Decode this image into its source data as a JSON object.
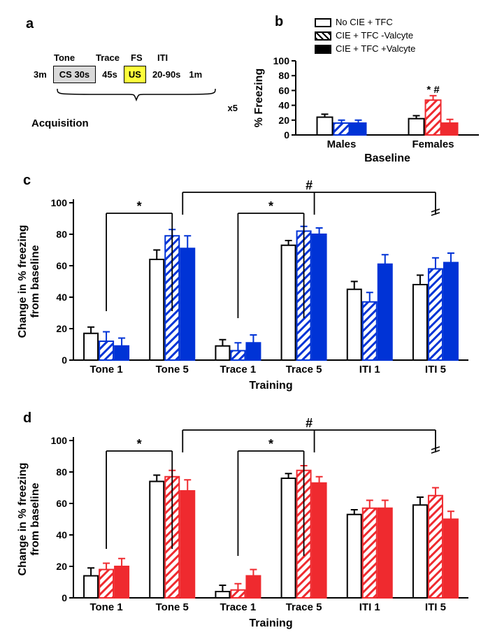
{
  "panel_a": {
    "label": "a",
    "top_labels": [
      "Tone",
      "Trace",
      "FS",
      "ITI"
    ],
    "row": [
      "3m",
      "CS 30s",
      "45s",
      "US",
      "20-90s",
      "1m"
    ],
    "repeat": "x5",
    "title": "Acquisition"
  },
  "panel_b": {
    "label": "b",
    "legend": {
      "items": [
        "No CIE + TFC",
        "CIE + TFC -Valcyte",
        "CIE + TFC +Valcyte"
      ]
    },
    "chart": {
      "type": "bar",
      "ylabel": "% Freezing",
      "xlabel": "Baseline",
      "ylim": [
        0,
        100
      ],
      "ytick_step": 20,
      "groups": [
        "Males",
        "Females"
      ],
      "colors": {
        "males": {
          "open": "#ffffff",
          "hatch": "#0033d6",
          "solid": "#0033d6"
        },
        "females": {
          "open": "#ffffff",
          "hatch": "#ef2a2f",
          "solid": "#ef2a2f"
        }
      },
      "series": [
        {
          "name": "No CIE + TFC",
          "fill": "open"
        },
        {
          "name": "CIE + TFC -Valcyte",
          "fill": "hatch"
        },
        {
          "name": "CIE + TFC +Valcyte",
          "fill": "solid"
        }
      ],
      "values": {
        "Males": [
          24,
          16,
          16
        ],
        "Females": [
          22,
          47,
          16
        ]
      },
      "errors": {
        "Males": [
          4,
          4,
          4
        ],
        "Females": [
          4,
          6,
          5
        ]
      },
      "annotations": [
        {
          "group": "Females",
          "bar": 1,
          "text": "* #"
        }
      ],
      "axis_linewidth": 2,
      "tick_labelsize": 14,
      "ylabel_fontsize": 16,
      "xlabel_fontsize": 16
    }
  },
  "panel_c": {
    "label": "c",
    "chart": {
      "type": "bar",
      "ylabel": "Change in % freezing\nfrom baseline",
      "xlabel": "Training",
      "ylim": [
        0,
        100
      ],
      "ytick_step": 20,
      "colors": {
        "open": "#ffffff",
        "hatch": "#0033d6",
        "solid": "#0033d6"
      },
      "groups": [
        "Tone 1",
        "Tone 5",
        "Trace 1",
        "Trace 5",
        "ITI 1",
        "ITI 5"
      ],
      "values": {
        "Tone 1": [
          17,
          12,
          9
        ],
        "Tone 5": [
          64,
          79,
          71
        ],
        "Trace 1": [
          9,
          6,
          11
        ],
        "Trace 5": [
          73,
          82,
          80
        ],
        "ITI 1": [
          45,
          37,
          61
        ],
        "ITI 5": [
          48,
          58,
          62
        ]
      },
      "errors": {
        "Tone 1": [
          4,
          6,
          5
        ],
        "Tone 5": [
          6,
          4,
          8
        ],
        "Trace 1": [
          4,
          5,
          5
        ],
        "Trace 5": [
          3,
          3,
          4
        ],
        "ITI 1": [
          5,
          6,
          6
        ],
        "ITI 5": [
          6,
          7,
          6
        ]
      },
      "sig_markers": [
        "*",
        "*",
        "#"
      ],
      "axis_linewidth": 2,
      "tick_labelsize": 14,
      "ylabel_fontsize": 16,
      "xlabel_fontsize": 16
    }
  },
  "panel_d": {
    "label": "d",
    "chart": {
      "type": "bar",
      "ylabel": "Change in % freezing\nfrom baseline",
      "xlabel": "Training",
      "ylim": [
        0,
        100
      ],
      "ytick_step": 20,
      "colors": {
        "open": "#ffffff",
        "hatch": "#ef2a2f",
        "solid": "#ef2a2f"
      },
      "groups": [
        "Tone 1",
        "Tone 5",
        "Trace 1",
        "Trace 5",
        "ITI 1",
        "ITI 5"
      ],
      "values": {
        "Tone 1": [
          14,
          18,
          20
        ],
        "Tone 5": [
          74,
          77,
          68
        ],
        "Trace 1": [
          4,
          5,
          14
        ],
        "Trace 5": [
          76,
          81,
          73
        ],
        "ITI 1": [
          53,
          57,
          57
        ],
        "ITI 5": [
          59,
          65,
          50
        ]
      },
      "errors": {
        "Tone 1": [
          5,
          4,
          5
        ],
        "Tone 5": [
          4,
          4,
          7
        ],
        "Trace 1": [
          4,
          4,
          4
        ],
        "Trace 5": [
          3,
          3,
          4
        ],
        "ITI 1": [
          3,
          5,
          5
        ],
        "ITI 5": [
          5,
          5,
          5
        ]
      },
      "sig_markers": [
        "*",
        "*",
        "#"
      ],
      "axis_linewidth": 2,
      "tick_labelsize": 14,
      "ylabel_fontsize": 16,
      "xlabel_fontsize": 16
    }
  }
}
